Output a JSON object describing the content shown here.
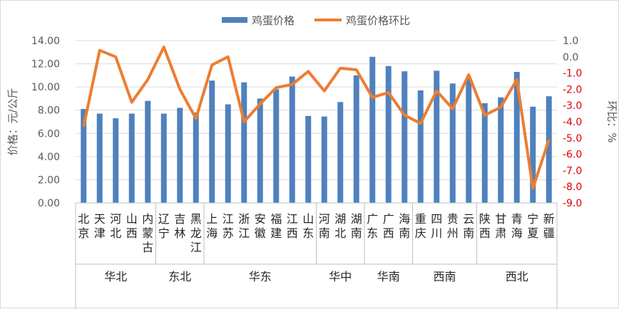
{
  "chart_data": {
    "type": "bar+line",
    "legend": [
      "鸡蛋价格",
      "鸡蛋价格环比"
    ],
    "legend_position": "top",
    "ylabel_left": "价格：元/公斤",
    "ylabel_right": "环比：%",
    "ylim_left": [
      0,
      14
    ],
    "ylim_right": [
      -9,
      1
    ],
    "left_ticks": [
      "0.00",
      "2.00",
      "4.00",
      "6.00",
      "8.00",
      "10.00",
      "12.00",
      "14.00"
    ],
    "right_ticks": [
      "-9.0",
      "-8.0",
      "-7.0",
      "-6.0",
      "-5.0",
      "-4.0",
      "-3.0",
      "-2.0",
      "-1.0",
      "0.0",
      "1.0"
    ],
    "categories": [
      "北京",
      "天津",
      "河北",
      "山西",
      "内蒙古",
      "辽宁",
      "吉林",
      "黑龙江",
      "上海",
      "江苏",
      "浙江",
      "安徽",
      "福建",
      "江西",
      "山东",
      "河南",
      "湖北",
      "湖南",
      "广东",
      "广西",
      "海南",
      "重庆",
      "四川",
      "贵州",
      "云南",
      "陕西",
      "甘肃",
      "青海",
      "宁夏",
      "新疆"
    ],
    "groups": [
      {
        "name": "华北",
        "count": 5
      },
      {
        "name": "东北",
        "count": 3
      },
      {
        "name": "华东",
        "count": 7
      },
      {
        "name": "华中",
        "count": 3
      },
      {
        "name": "华南",
        "count": 3
      },
      {
        "name": "西南",
        "count": 4
      },
      {
        "name": "西北",
        "count": 5
      }
    ],
    "series": [
      {
        "name": "鸡蛋价格",
        "type": "bar",
        "color": "#4f81bd",
        "values": [
          8.1,
          7.7,
          7.3,
          7.7,
          8.8,
          7.7,
          8.2,
          7.8,
          10.55,
          8.5,
          10.4,
          9.0,
          9.8,
          10.9,
          7.5,
          7.45,
          8.7,
          11.0,
          12.6,
          11.8,
          11.35,
          9.7,
          11.4,
          10.3,
          10.7,
          8.6,
          9.1,
          11.3,
          8.3,
          9.2
        ]
      },
      {
        "name": "鸡蛋价格环比",
        "type": "line",
        "axis": "right",
        "color": "#ed7d31",
        "values": [
          -4.3,
          0.4,
          0.0,
          -2.8,
          -1.4,
          0.6,
          -2.0,
          -3.8,
          -0.5,
          0.0,
          -4.0,
          -2.9,
          -1.9,
          -1.7,
          -0.9,
          -2.1,
          -0.7,
          -0.8,
          -2.5,
          -2.2,
          -3.6,
          -4.1,
          -2.1,
          -3.2,
          -1.1,
          -3.6,
          -3.1,
          -1.4,
          -8.1,
          -5.1
        ]
      }
    ]
  }
}
